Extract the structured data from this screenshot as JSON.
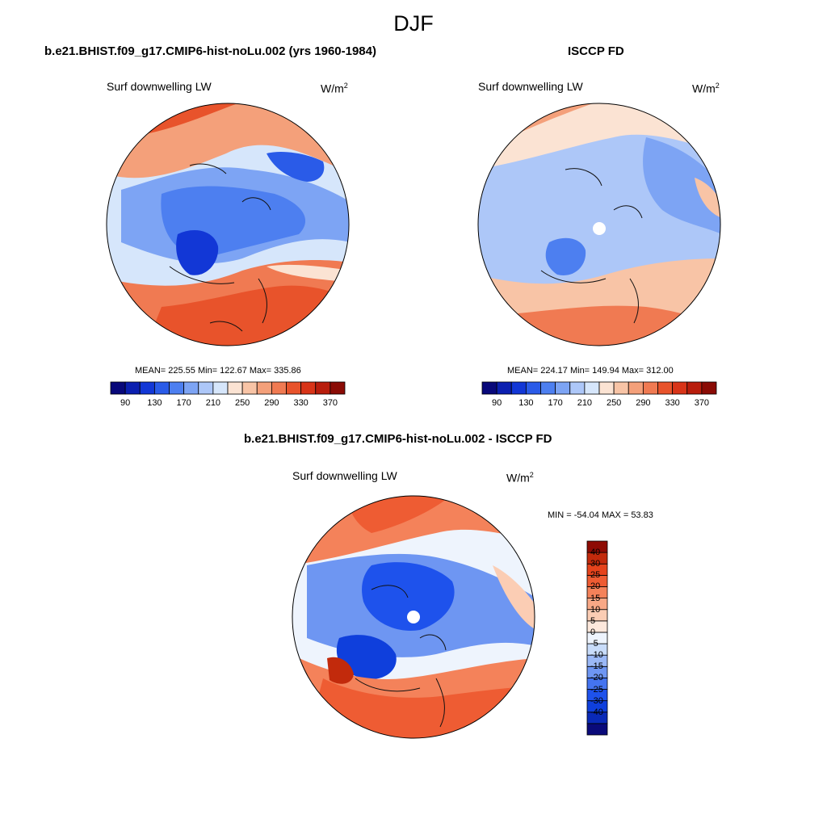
{
  "figure": {
    "season": "DJF"
  },
  "panels": {
    "model": {
      "case_title": "b.e21.BHIST.f09_g17.CMIP6-hist-noLu.002 (yrs 1960-1984)",
      "variable": "Surf downwelling LW",
      "units_base": "W/m",
      "units_exp": "2",
      "stats": "MEAN= 225.55  Min= 122.67  Max= 335.86"
    },
    "obs": {
      "case_title": "ISCCP FD",
      "variable": "Surf downwelling LW",
      "units_base": "W/m",
      "units_exp": "2",
      "stats": "MEAN= 224.17  Min= 149.94  Max= 312.00"
    },
    "diff": {
      "case_title": "b.e21.BHIST.f09_g17.CMIP6-hist-noLu.002 - ISCCP FD",
      "variable": "Surf downwelling LW",
      "units_base": "W/m",
      "units_exp": "2",
      "stats": "MIN = -54.04 MAX =  53.83"
    }
  },
  "colorbars": {
    "abs": {
      "colors": [
        "#08087a",
        "#0b1fb0",
        "#1237d6",
        "#2a5be8",
        "#4d7ff0",
        "#7da4f4",
        "#adc7f8",
        "#d6e6fb",
        "#fbe3d3",
        "#f8c4a6",
        "#f4a07a",
        "#f07a52",
        "#e8532b",
        "#d83418",
        "#b81d0c",
        "#8a0b05"
      ],
      "tick_labels": [
        "90",
        "130",
        "170",
        "210",
        "250",
        "290",
        "330",
        "370"
      ]
    },
    "diff": {
      "colors": [
        "#0a0a7a",
        "#0a2ab8",
        "#0f3fdc",
        "#1e52ec",
        "#4474f0",
        "#6e96f2",
        "#9ab8f6",
        "#c8dcfa",
        "#eef4fd",
        "#fde8dc",
        "#fbcdb4",
        "#f8a886",
        "#f4825a",
        "#ee5c33",
        "#e5431c",
        "#c22a0c",
        "#8e0b04"
      ],
      "tick_labels": [
        "40",
        "30",
        "25",
        "20",
        "15",
        "10",
        "5",
        "0",
        "-5",
        "-10",
        "-15",
        "-20",
        "-25",
        "-30",
        "-40"
      ]
    }
  }
}
